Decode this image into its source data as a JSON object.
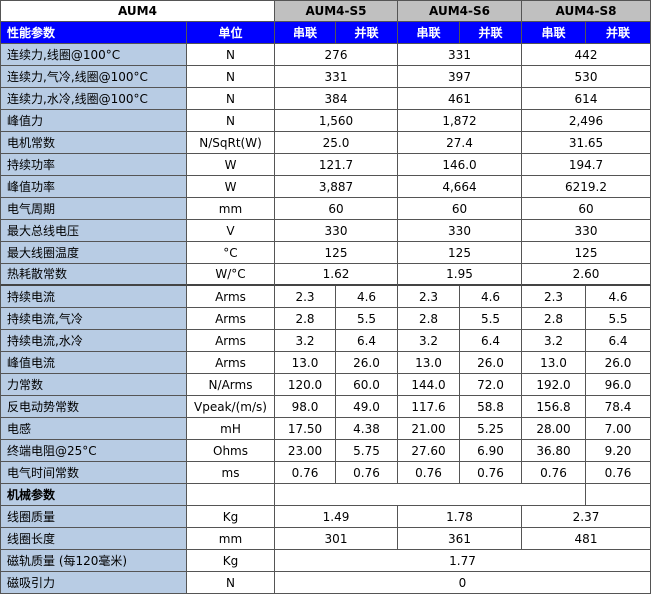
{
  "title": "AUM4",
  "models": [
    "AUM4-S5",
    "AUM4-S6",
    "AUM4-S8"
  ],
  "header": {
    "param": "性能参数",
    "unit": "单位",
    "series": "串联",
    "parallel": "并联"
  },
  "rows": [
    {
      "label": "连续力,线圈@100°C",
      "unit": "N",
      "values": [
        "276",
        "331",
        "442"
      ]
    },
    {
      "label": "连续力,气冷,线圈@100°C",
      "unit": "N",
      "values": [
        "331",
        "397",
        "530"
      ]
    },
    {
      "label": "连续力,水冷,线圈@100°C",
      "unit": "N",
      "values": [
        "384",
        "461",
        "614"
      ]
    },
    {
      "label": "峰值力",
      "unit": "N",
      "values": [
        "1,560",
        "1,872",
        "2,496"
      ]
    },
    {
      "label": "电机常数",
      "unit": "N/SqRt(W)",
      "values": [
        "25.0",
        "27.4",
        "31.65"
      ]
    },
    {
      "label": "持续功率",
      "unit": "W",
      "values": [
        "121.7",
        "146.0",
        "194.7"
      ]
    },
    {
      "label": "峰值功率",
      "unit": "W",
      "values": [
        "3,887",
        "4,664",
        "6219.2"
      ]
    },
    {
      "label": "电气周期",
      "unit": "mm",
      "values": [
        "60",
        "60",
        "60"
      ]
    },
    {
      "label": "最大总线电压",
      "unit": "V",
      "values": [
        "330",
        "330",
        "330"
      ]
    },
    {
      "label": "最大线圈温度",
      "unit": "°C",
      "values": [
        "125",
        "125",
        "125"
      ]
    },
    {
      "label": "热耗散常数",
      "unit": "W/°C",
      "values": [
        "1.62",
        "1.95",
        "2.60"
      ]
    },
    {
      "label": "持续电流",
      "unit": "Arms",
      "values": [
        "2.3",
        "4.6",
        "2.3",
        "4.6",
        "2.3",
        "4.6"
      ]
    },
    {
      "label": "持续电流,气冷",
      "unit": "Arms",
      "values": [
        "2.8",
        "5.5",
        "2.8",
        "5.5",
        "2.8",
        "5.5"
      ]
    },
    {
      "label": "持续电流,水冷",
      "unit": "Arms",
      "values": [
        "3.2",
        "6.4",
        "3.2",
        "6.4",
        "3.2",
        "6.4"
      ]
    },
    {
      "label": "峰值电流",
      "unit": "Arms",
      "values": [
        "13.0",
        "26.0",
        "13.0",
        "26.0",
        "13.0",
        "26.0"
      ]
    },
    {
      "label": "力常数",
      "unit": "N/Arms",
      "values": [
        "120.0",
        "60.0",
        "144.0",
        "72.0",
        "192.0",
        "96.0"
      ]
    },
    {
      "label": "反电动势常数",
      "unit": "Vpeak/(m/s)",
      "values": [
        "98.0",
        "49.0",
        "117.6",
        "58.8",
        "156.8",
        "78.4"
      ]
    },
    {
      "label": "电感",
      "unit": "mH",
      "values": [
        "17.50",
        "4.38",
        "21.00",
        "5.25",
        "28.00",
        "7.00"
      ]
    },
    {
      "label": "终端电阻@25°C",
      "unit": "Ohms",
      "values": [
        "23.00",
        "5.75",
        "27.60",
        "6.90",
        "36.80",
        "9.20"
      ]
    },
    {
      "label": "电气时间常数",
      "unit": "ms",
      "values": [
        "0.76",
        "0.76",
        "0.76",
        "0.76",
        "0.76",
        "0.76"
      ]
    },
    {
      "label": "机械参数",
      "unit": "",
      "values": []
    },
    {
      "label": "线圈质量",
      "unit": "Kg",
      "values": [
        "1.49",
        "1.78",
        "2.37"
      ]
    },
    {
      "label": "线圈长度",
      "unit": "mm",
      "values": [
        "301",
        "361",
        "481"
      ]
    },
    {
      "label": "磁轨质量 (每120毫米)",
      "unit": "Kg",
      "values": [
        "1.77"
      ]
    },
    {
      "label": "磁吸引力",
      "unit": "N",
      "values": [
        "0"
      ]
    }
  ]
}
